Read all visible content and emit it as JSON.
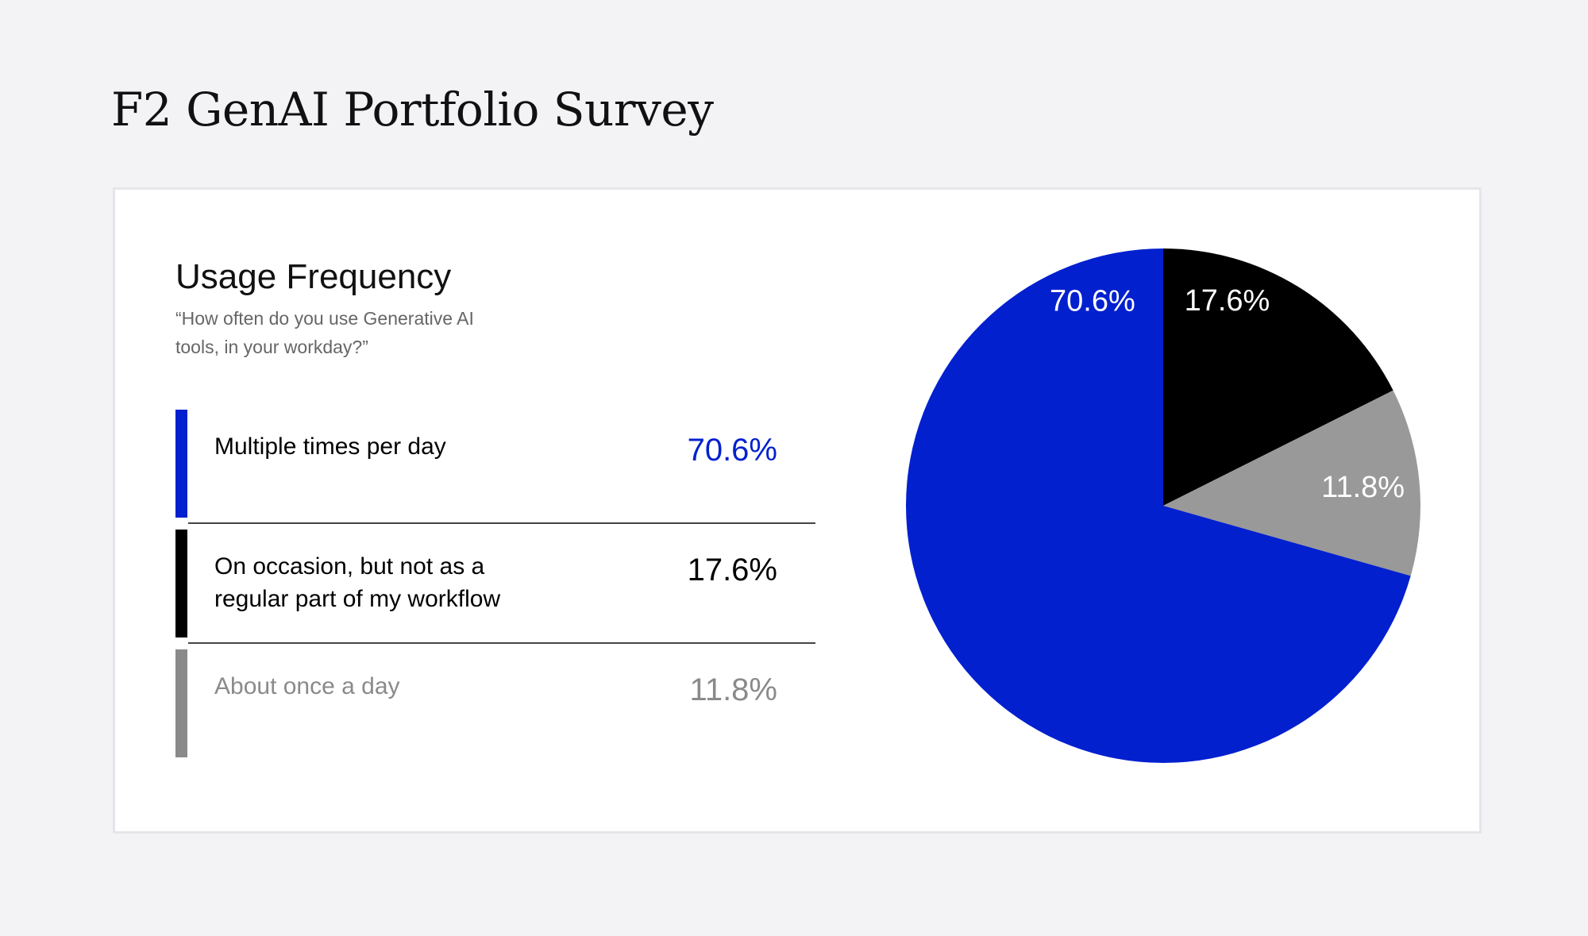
{
  "page": {
    "title": "F2 GenAI Portfolio Survey"
  },
  "section": {
    "title": "Usage Frequency",
    "question": "“How often do you use Generative AI tools, in your workday?”"
  },
  "colors": {
    "blue": "#0320cf",
    "black": "#000000",
    "gray": "#999999",
    "gray_text": "#8a8a8a"
  },
  "legend": [
    {
      "label": "Multiple times per day",
      "value": "70.6%",
      "bar_color": "#0320cf",
      "text_color": "#000000",
      "value_color": "#0320cf"
    },
    {
      "label": "On occasion, but not as a regular part of my workflow",
      "value": "17.6%",
      "bar_color": "#000000",
      "text_color": "#000000",
      "value_color": "#000000"
    },
    {
      "label": "About once a day",
      "value": "11.8%",
      "bar_color": "#8a8a8a",
      "text_color": "#8a8a8a",
      "value_color": "#8a8a8a"
    }
  ],
  "chart_data": {
    "type": "pie",
    "title": "Usage Frequency",
    "slices": [
      {
        "label": "On occasion, but not as a regular part of my workflow",
        "value": 17.6,
        "display": "17.6%",
        "color": "#000000"
      },
      {
        "label": "About once a day",
        "value": 11.8,
        "display": "11.8%",
        "color": "#999999"
      },
      {
        "label": "Multiple times per day",
        "value": 70.6,
        "display": "70.6%",
        "color": "#0320cf"
      }
    ],
    "start": "12 o'clock",
    "direction": "clockwise",
    "legend_placement": "left"
  }
}
